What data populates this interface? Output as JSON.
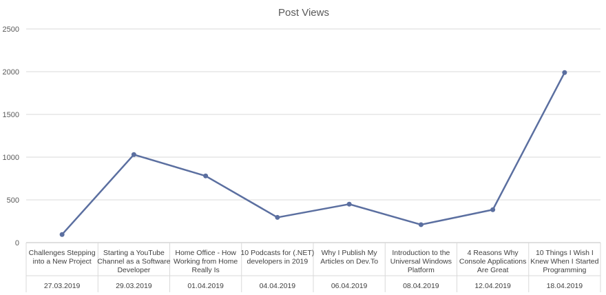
{
  "chart_data": {
    "type": "line",
    "title": "Post Views",
    "xlabel": "",
    "ylabel": "",
    "ylim": [
      0,
      2500
    ],
    "yticks": [
      0,
      500,
      1000,
      1500,
      2000,
      2500
    ],
    "grid": true,
    "legend": "none",
    "categories": [
      {
        "label": [
          "Challenges Stepping",
          "into a New Project"
        ],
        "date": "27.03.2019"
      },
      {
        "label": [
          "Starting a YouTube",
          "Channel as a Software",
          "Developer"
        ],
        "date": "29.03.2019"
      },
      {
        "label": [
          "Home Office - How",
          "Working from Home",
          "Really Is"
        ],
        "date": "01.04.2019"
      },
      {
        "label": [
          "10 Podcasts for (.NET)",
          "developers in 2019"
        ],
        "date": "04.04.2019"
      },
      {
        "label": [
          "Why I Publish My",
          "Articles on Dev.To"
        ],
        "date": "06.04.2019"
      },
      {
        "label": [
          "Introduction to the",
          "Universal Windows",
          "Platform"
        ],
        "date": "08.04.2019"
      },
      {
        "label": [
          "4 Reasons Why",
          "Console Applications",
          "Are Great"
        ],
        "date": "12.04.2019"
      },
      {
        "label": [
          "10 Things I Wish I",
          "Knew When I Started",
          "Programming"
        ],
        "date": "18.04.2019"
      }
    ],
    "series": [
      {
        "name": "Post Views",
        "color": "#5b6fa0",
        "values": [
          95,
          1030,
          780,
          295,
          450,
          210,
          385,
          1990
        ]
      }
    ]
  }
}
